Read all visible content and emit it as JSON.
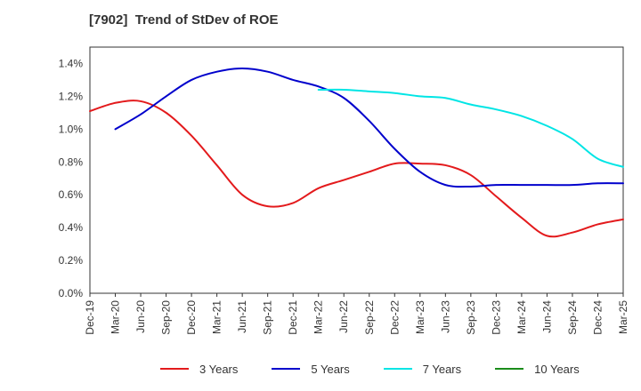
{
  "chart_data": {
    "type": "line",
    "title": "[7902]  Trend of StDev of ROE",
    "x_labels": [
      "Dec-19",
      "Mar-20",
      "Jun-20",
      "Sep-20",
      "Dec-20",
      "Mar-21",
      "Jun-21",
      "Sep-21",
      "Dec-21",
      "Mar-22",
      "Jun-22",
      "Sep-22",
      "Dec-22",
      "Mar-23",
      "Jun-23",
      "Sep-23",
      "Dec-23",
      "Mar-24",
      "Jun-24",
      "Sep-24",
      "Dec-24",
      "Mar-25"
    ],
    "y_ticks": [
      "0.0%",
      "0.2%",
      "0.4%",
      "0.6%",
      "0.8%",
      "1.0%",
      "1.2%",
      "1.4%"
    ],
    "ylim": [
      0,
      1.5
    ],
    "grid": true,
    "legend_position": "bottom",
    "series": [
      {
        "name": "3 Years",
        "color": "#e31a1c",
        "values": [
          1.11,
          1.16,
          1.17,
          1.1,
          0.96,
          0.78,
          0.6,
          0.53,
          0.55,
          0.64,
          0.69,
          0.74,
          0.79,
          0.79,
          0.78,
          0.72,
          0.59,
          0.46,
          0.35,
          0.37,
          0.42,
          0.45
        ]
      },
      {
        "name": "5 Years",
        "color": "#0000cc",
        "values": [
          null,
          1.0,
          1.09,
          1.2,
          1.3,
          1.35,
          1.37,
          1.35,
          1.3,
          1.26,
          1.19,
          1.05,
          0.88,
          0.74,
          0.66,
          0.65,
          0.66,
          0.66,
          0.66,
          0.66,
          0.67,
          0.67
        ]
      },
      {
        "name": "7 Years",
        "color": "#00e5e5",
        "values": [
          null,
          null,
          null,
          null,
          null,
          null,
          null,
          null,
          null,
          1.24,
          1.24,
          1.23,
          1.22,
          1.2,
          1.19,
          1.15,
          1.12,
          1.08,
          1.02,
          0.94,
          0.82,
          0.77
        ]
      },
      {
        "name": "10 Years",
        "color": "#1a8c1a",
        "values": []
      }
    ]
  }
}
